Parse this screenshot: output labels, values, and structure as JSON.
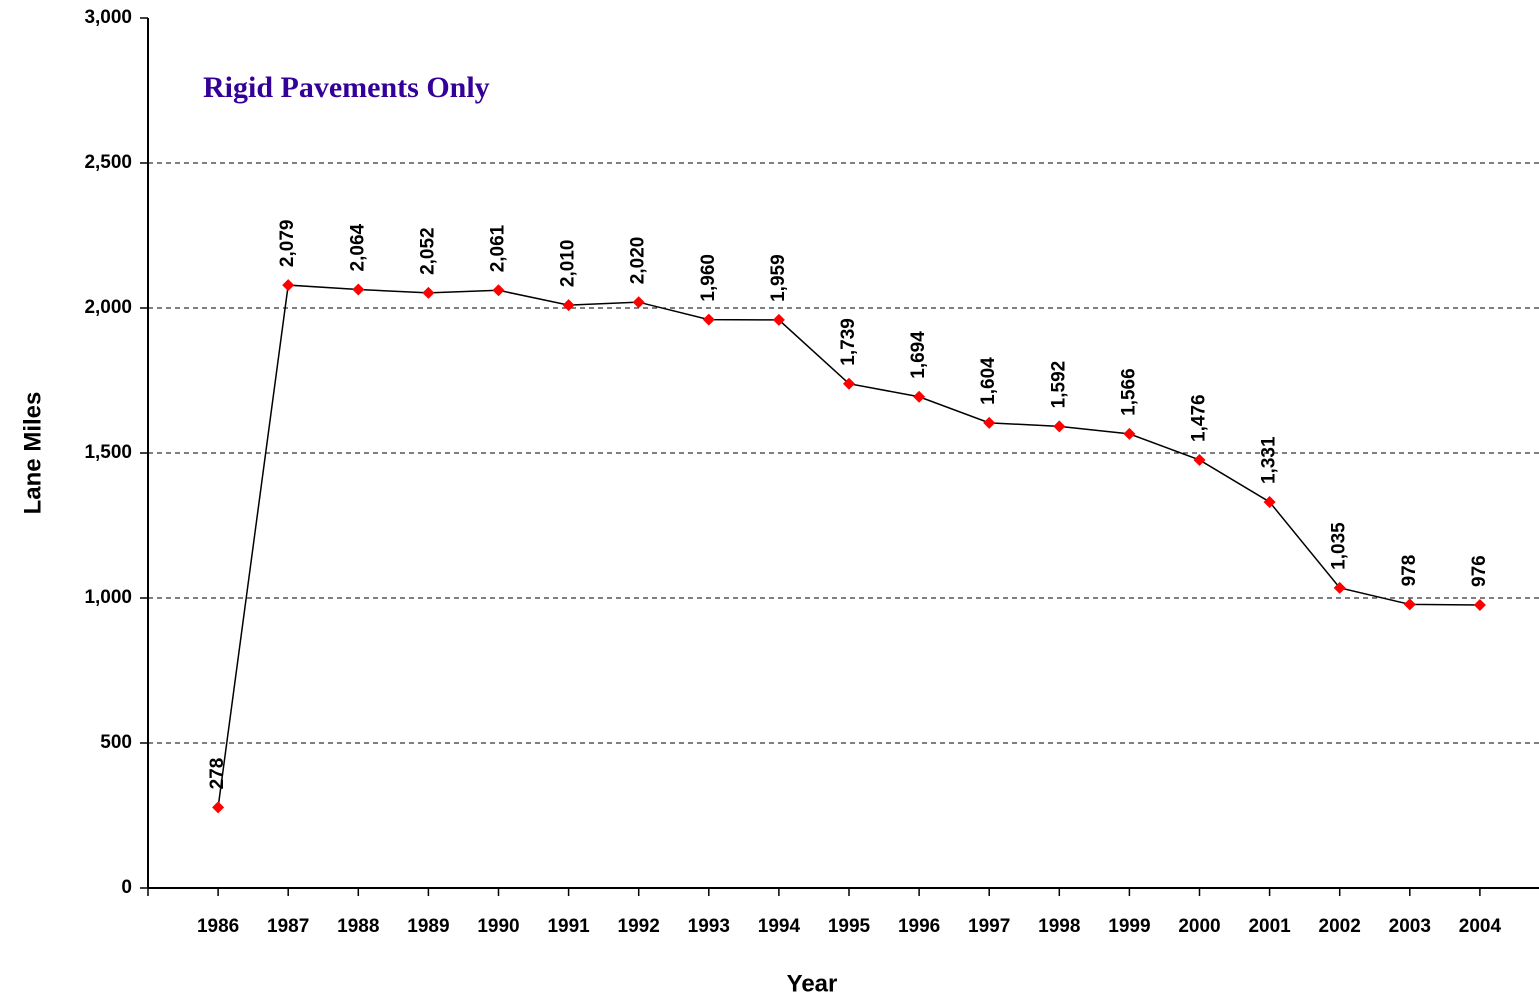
{
  "chart_data": {
    "type": "line",
    "annotation": "Rigid Pavements Only",
    "x_label": "Year",
    "y_label": "Lane Miles",
    "categories": [
      "1986",
      "1987",
      "1988",
      "1989",
      "1990",
      "1991",
      "1992",
      "1993",
      "1994",
      "1995",
      "1996",
      "1997",
      "1998",
      "1999",
      "2000",
      "2001",
      "2002",
      "2003",
      "2004"
    ],
    "series": [
      {
        "name": "Lane Miles",
        "color": "#000000",
        "marker_color": "#ff0000",
        "values": [
          278,
          2079,
          2064,
          2052,
          2061,
          2010,
          2020,
          1960,
          1959,
          1739,
          1694,
          1604,
          1592,
          1566,
          1476,
          1331,
          1035,
          978,
          976
        ],
        "value_labels": [
          "278",
          "2,079",
          "2,064",
          "2,052",
          "2,061",
          "2,010",
          "2,020",
          "1,960",
          "1,959",
          "1,739",
          "1,694",
          "1,604",
          "1,592",
          "1,566",
          "1,476",
          "1,331",
          "1,035",
          "978",
          "976"
        ]
      }
    ],
    "ylim": [
      0,
      3000
    ],
    "yticks": [
      0,
      500,
      {
        "value": 1000,
        "label": "1,000"
      },
      {
        "value": 1500,
        "label": "1,500"
      },
      {
        "value": 2000,
        "label": "2,000"
      },
      {
        "value": 2500,
        "label": "2,500"
      },
      {
        "value": 3000,
        "label": "3,000"
      }
    ],
    "grid": true
  }
}
